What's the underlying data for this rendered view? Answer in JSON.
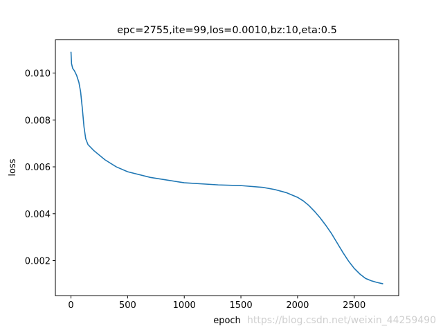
{
  "chart_data": {
    "type": "line",
    "title": "epc=2755,ite=99,los=0.0010,bz:10,eta:0.5",
    "x_label": "epoch",
    "y_label": "loss",
    "x": [
      0,
      5,
      15,
      30,
      50,
      70,
      85,
      100,
      115,
      130,
      150,
      200,
      300,
      400,
      500,
      700,
      1000,
      1300,
      1500,
      1700,
      1800,
      1900,
      2000,
      2050,
      2100,
      2150,
      2200,
      2250,
      2300,
      2350,
      2400,
      2450,
      2500,
      2550,
      2600,
      2650,
      2700,
      2755
    ],
    "series": [
      {
        "name": "loss",
        "color": "#1f77b4",
        "values": [
          0.01091,
          0.0104,
          0.0102,
          0.0101,
          0.0099,
          0.0096,
          0.0092,
          0.0085,
          0.0077,
          0.0072,
          0.00695,
          0.0067,
          0.0063,
          0.006,
          0.00579,
          0.00555,
          0.00532,
          0.00523,
          0.0052,
          0.00512,
          0.00503,
          0.0049,
          0.0047,
          0.00455,
          0.00435,
          0.0041,
          0.00382,
          0.0035,
          0.00315,
          0.00275,
          0.00235,
          0.00198,
          0.00167,
          0.00143,
          0.00124,
          0.00114,
          0.00107,
          0.00101
        ]
      }
    ],
    "xlim": [
      -137.75,
      2892.75
    ],
    "ylim": [
      0.000504,
      0.011416
    ],
    "xticks": [
      0,
      500,
      1000,
      1500,
      2000,
      2500
    ],
    "yticks": [
      {
        "value": 0.002,
        "label": "0.002"
      },
      {
        "value": 0.004,
        "label": "0.004"
      },
      {
        "value": 0.006,
        "label": "0.006"
      },
      {
        "value": 0.008,
        "label": "0.008"
      },
      {
        "value": 0.01,
        "label": "0.010"
      }
    ],
    "watermark": "https://blog.csdn.net/weixin_44259490"
  }
}
